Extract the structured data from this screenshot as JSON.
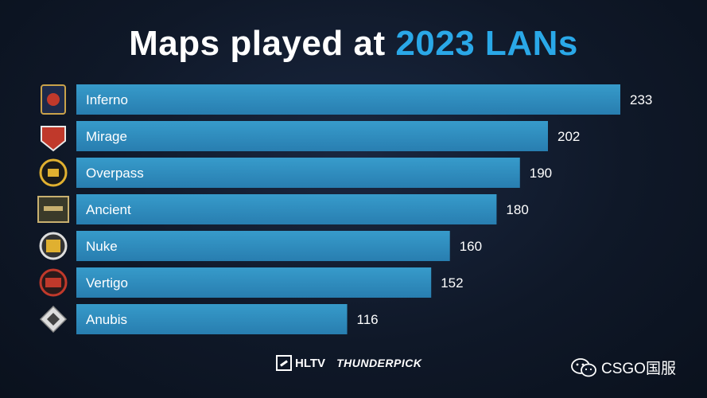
{
  "title": {
    "lead": "Maps played at ",
    "highlight": "2023 LANs"
  },
  "colors": {
    "bar": "#2e8fc4",
    "bar_light": "#3aa6d8",
    "highlight": "#2aa8e8",
    "background": "#0f1828"
  },
  "chart_data": {
    "type": "bar",
    "orientation": "horizontal",
    "title": "Maps played at 2023 LANs",
    "categories": [
      "Inferno",
      "Mirage",
      "Overpass",
      "Ancient",
      "Nuke",
      "Vertigo",
      "Anubis"
    ],
    "values": [
      233,
      202,
      190,
      180,
      160,
      152,
      116
    ],
    "xlim": [
      0,
      233
    ],
    "grid": false,
    "legend": "none",
    "icons": [
      "inferno-map-icon",
      "mirage-map-icon",
      "overpass-map-icon",
      "ancient-map-icon",
      "nuke-map-icon",
      "vertigo-map-icon",
      "anubis-map-icon"
    ]
  },
  "footer": {
    "hltv": "HLTV",
    "sponsor": "THUNDERPICK"
  },
  "watermark": {
    "icon": "wechat-icon",
    "text": "CSGO国服"
  }
}
